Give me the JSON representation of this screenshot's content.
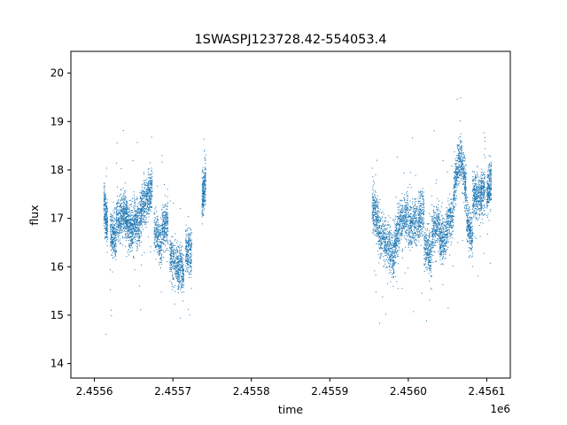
{
  "chart_data": {
    "type": "scatter",
    "title": "1SWASPJ123728.42-554053.4",
    "xlabel": "time",
    "ylabel": "flux",
    "x_offset_label": "1e6",
    "xlim": [
      2455570,
      2456130
    ],
    "ylim": [
      13.7,
      20.45
    ],
    "x_ticks": [
      2455600,
      2455700,
      2455800,
      2455900,
      2456000,
      2456100
    ],
    "x_tick_labels": [
      "2.4556",
      "2.4557",
      "2.4558",
      "2.4559",
      "2.4560",
      "2.4561"
    ],
    "y_ticks": [
      14,
      15,
      16,
      17,
      18,
      19,
      20
    ],
    "y_tick_labels": [
      "14",
      "15",
      "16",
      "17",
      "18",
      "19",
      "20"
    ],
    "grid": false,
    "marker_color": "#1f77b4",
    "series": [
      {
        "clusters": [
          {
            "x": [
              2455612,
              2455617
            ],
            "y": [
              17.3,
              16.8
            ]
          },
          {
            "x": [
              2455620,
              2455628
            ],
            "y": [
              16.7,
              16.6
            ]
          },
          {
            "x": [
              2455628,
              2455636
            ],
            "y": [
              17.0,
              17.0
            ]
          },
          {
            "x": [
              2455636,
              2455642
            ],
            "y": [
              17.1,
              17.0
            ]
          },
          {
            "x": [
              2455642,
              2455650
            ],
            "y": [
              16.9,
              16.7
            ]
          },
          {
            "x": [
              2455650,
              2455658
            ],
            "y": [
              17.0,
              16.8
            ]
          },
          {
            "x": [
              2455658,
              2455666
            ],
            "y": [
              17.1,
              17.4
            ]
          },
          {
            "x": [
              2455666,
              2455674
            ],
            "y": [
              17.4,
              17.7
            ]
          },
          {
            "x": [
              2455676,
              2455686
            ],
            "y": [
              16.8,
              16.4
            ]
          },
          {
            "x": [
              2455686,
              2455694
            ],
            "y": [
              16.8,
              16.9
            ]
          },
          {
            "x": [
              2455696,
              2455706
            ],
            "y": [
              16.2,
              16.0
            ]
          },
          {
            "x": [
              2455706,
              2455714
            ],
            "y": [
              16.0,
              15.9
            ]
          },
          {
            "x": [
              2455716,
              2455724
            ],
            "y": [
              16.3,
              16.3
            ]
          },
          {
            "x": [
              2455737,
              2455742
            ],
            "y": [
              17.4,
              17.8
            ]
          },
          {
            "x": [
              2455954,
              2455962
            ],
            "y": [
              17.3,
              16.9
            ]
          },
          {
            "x": [
              2455962,
              2455972
            ],
            "y": [
              16.7,
              16.5
            ]
          },
          {
            "x": [
              2455972,
              2455982
            ],
            "y": [
              16.5,
              16.2
            ]
          },
          {
            "x": [
              2455982,
              2455990
            ],
            "y": [
              16.4,
              16.9
            ]
          },
          {
            "x": [
              2455990,
              2456000
            ],
            "y": [
              16.9,
              17.1
            ]
          },
          {
            "x": [
              2456000,
              2456010
            ],
            "y": [
              16.8,
              17.0
            ]
          },
          {
            "x": [
              2456010,
              2456020
            ],
            "y": [
              16.9,
              17.2
            ]
          },
          {
            "x": [
              2456020,
              2456030
            ],
            "y": [
              16.5,
              16.2
            ]
          },
          {
            "x": [
              2456030,
              2456040
            ],
            "y": [
              16.7,
              16.9
            ]
          },
          {
            "x": [
              2456040,
              2456048
            ],
            "y": [
              16.5,
              16.6
            ]
          },
          {
            "x": [
              2456048,
              2456058
            ],
            "y": [
              16.8,
              17.2
            ]
          },
          {
            "x": [
              2456058,
              2456066
            ],
            "y": [
              17.6,
              18.3
            ]
          },
          {
            "x": [
              2456066,
              2456074
            ],
            "y": [
              18.3,
              17.6
            ]
          },
          {
            "x": [
              2456074,
              2456082
            ],
            "y": [
              17.0,
              16.6
            ]
          },
          {
            "x": [
              2456082,
              2456090
            ],
            "y": [
              17.4,
              17.5
            ]
          },
          {
            "x": [
              2456090,
              2456098
            ],
            "y": [
              17.4,
              17.6
            ]
          },
          {
            "x": [
              2456100,
              2456106
            ],
            "y": [
              17.5,
              17.8
            ]
          }
        ]
      }
    ]
  }
}
